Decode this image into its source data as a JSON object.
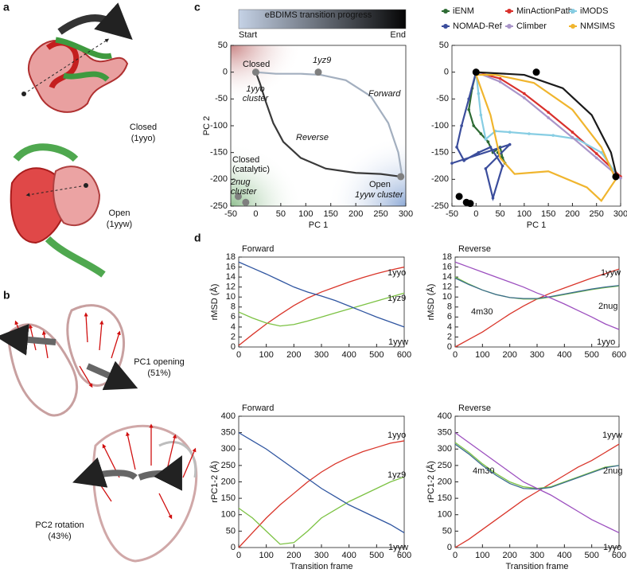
{
  "figure": {
    "panel_labels": [
      "a",
      "b",
      "c",
      "d"
    ],
    "panel_a": {
      "closed": [
        "Closed",
        "(1yyo)"
      ],
      "open": [
        "Open",
        "(1yyw)"
      ]
    },
    "panel_b": {
      "pc1": [
        "PC1 opening",
        "(51%)"
      ],
      "pc2": [
        "PC2 rotation",
        "(43%)"
      ]
    }
  },
  "chart_data": [
    {
      "type": "line",
      "xlabel": "PC 1",
      "ylabel": "PC 2",
      "xlim": [
        -50,
        300
      ],
      "ylim": [
        -250,
        50
      ],
      "xticks": [
        -50,
        0,
        50,
        100,
        150,
        200,
        250,
        300
      ],
      "yticks": [
        -250,
        -200,
        -150,
        -100,
        -50,
        0,
        50
      ],
      "colorbar": {
        "title": "eBDIMS transition progress",
        "start": "Start",
        "end": "End"
      },
      "series": [
        {
          "name": "Forward",
          "color": "#a3afbf",
          "x": [
            0,
            40,
            90,
            130,
            180,
            230,
            265,
            285,
            292
          ],
          "values": [
            0,
            -3,
            -3,
            -5,
            -15,
            -45,
            -95,
            -150,
            -190
          ]
        },
        {
          "name": "Reverse",
          "color": "#3a3a3a",
          "x": [
            0,
            8,
            20,
            35,
            55,
            90,
            140,
            200,
            250,
            290
          ],
          "values": [
            0,
            -20,
            -55,
            -95,
            -130,
            -160,
            -180,
            -188,
            -190,
            -195
          ]
        }
      ],
      "points": {
        "color": "#7f7f7f",
        "x": [
          0,
          125,
          290,
          -35,
          -20
        ],
        "y": [
          0,
          0,
          -195,
          -232,
          -243
        ]
      },
      "annotations": [
        [
          "Closed"
        ],
        [
          "1yz9"
        ],
        [
          "1yyo",
          "cluster"
        ],
        [
          "Closed",
          "(catalytic)"
        ],
        [
          "2nug",
          "cluster"
        ],
        [
          "Open"
        ],
        [
          "1yyw cluster"
        ]
      ]
    },
    {
      "type": "line",
      "xlabel": "PC 1",
      "xlim": [
        -50,
        300
      ],
      "ylim": [
        -250,
        50
      ],
      "xticks": [
        -50,
        0,
        50,
        100,
        150,
        200,
        250,
        300
      ],
      "yticks": [
        -250,
        -200,
        -150,
        -100,
        -50,
        0,
        50
      ],
      "legend": true,
      "series": [
        {
          "name": "iENM",
          "color": "#2e6b34",
          "markers": true,
          "x": [
            0,
            -8,
            -15,
            -5,
            10,
            25,
            35,
            50,
            55,
            60,
            45
          ],
          "values": [
            0,
            -30,
            -70,
            -100,
            -115,
            -130,
            -150,
            -140,
            -160,
            -170,
            -150
          ]
        },
        {
          "name": "MinActionPath",
          "color": "#d9302c",
          "markers": true,
          "x": [
            0,
            50,
            100,
            150,
            200,
            250,
            300
          ],
          "values": [
            0,
            -12,
            -40,
            -75,
            -112,
            -152,
            -195
          ]
        },
        {
          "name": "iMODS",
          "color": "#86cde3",
          "markers": true,
          "x": [
            0,
            5,
            10,
            20,
            40,
            70,
            110,
            160,
            210,
            260,
            295
          ],
          "values": [
            0,
            -40,
            -80,
            -125,
            -110,
            -112,
            -115,
            -118,
            -125,
            -150,
            -195
          ]
        },
        {
          "name": "NOMAD-Ref",
          "color": "#3b4d9c",
          "markers": true,
          "x": [
            0,
            -15,
            -30,
            -40,
            -25,
            5,
            30,
            55,
            35,
            20,
            70,
            -50
          ],
          "values": [
            0,
            -50,
            -100,
            -140,
            -165,
            -150,
            -140,
            -175,
            -235,
            -180,
            -135,
            -170
          ]
        },
        {
          "name": "Climber",
          "color": "#a995c9",
          "markers": true,
          "x": [
            0,
            50,
            100,
            150,
            200,
            250,
            300
          ],
          "values": [
            0,
            -18,
            -48,
            -85,
            -122,
            -160,
            -198
          ]
        },
        {
          "name": "NMSIMS",
          "color": "#f0b52e",
          "x": [
            0,
            30,
            50,
            80,
            150,
            230,
            260,
            290,
            260,
            200,
            120,
            40,
            0
          ],
          "values": [
            -5,
            -80,
            -160,
            -190,
            -185,
            -215,
            -240,
            -200,
            -140,
            -70,
            -20,
            -5,
            -5
          ]
        },
        {
          "color": "#1a1a1a",
          "x": [
            0,
            100,
            180,
            240,
            280,
            292
          ],
          "values": [
            0,
            -5,
            -30,
            -80,
            -150,
            -195
          ]
        }
      ],
      "points": {
        "color": "#000000",
        "x": [
          0,
          125,
          290,
          -35,
          -20,
          -12
        ],
        "y": [
          0,
          0,
          -195,
          -232,
          -243,
          -245
        ]
      }
    },
    {
      "type": "line",
      "title": "Forward",
      "ylabel": "rMSD (Å)",
      "xlim": [
        0,
        600
      ],
      "ylim": [
        0,
        18
      ],
      "xticks": [
        0,
        100,
        200,
        300,
        400,
        500,
        600
      ],
      "yticks": [
        0,
        2,
        4,
        6,
        8,
        10,
        12,
        14,
        16,
        18
      ],
      "x": [
        0,
        50,
        100,
        150,
        200,
        250,
        300,
        350,
        400,
        450,
        500,
        550,
        600
      ],
      "series": [
        {
          "name": "1yyo",
          "color": "#d9352a",
          "values": [
            0.3,
            2.5,
            4.6,
            6.5,
            8.3,
            9.8,
            11,
            12,
            13,
            13.9,
            14.7,
            15.4,
            16
          ]
        },
        {
          "name": "1yz9",
          "color": "#7cc243",
          "values": [
            7,
            5.8,
            4.8,
            4.2,
            4.5,
            5.2,
            6,
            6.8,
            7.6,
            8.4,
            9.2,
            10,
            10.8
          ]
        },
        {
          "name": "1yyw",
          "color": "#2f55a0",
          "values": [
            17,
            15.8,
            14.6,
            13.3,
            12,
            11,
            10.2,
            9.3,
            8.2,
            7.1,
            6,
            5,
            4
          ]
        }
      ]
    },
    {
      "type": "line",
      "title": "Reverse",
      "ylabel": "rMSD (Å)",
      "xlim": [
        0,
        600
      ],
      "ylim": [
        0,
        18
      ],
      "xticks": [
        0,
        100,
        200,
        300,
        400,
        500,
        600
      ],
      "yticks": [
        0,
        2,
        4,
        6,
        8,
        10,
        12,
        14,
        16,
        18
      ],
      "x": [
        0,
        50,
        100,
        150,
        200,
        250,
        300,
        350,
        400,
        450,
        500,
        550,
        600
      ],
      "series": [
        {
          "name": "1yyw",
          "color": "#d9352a",
          "values": [
            0,
            1.5,
            3,
            4.8,
            6.6,
            8.2,
            9.6,
            10.8,
            11.8,
            12.8,
            13.8,
            14.7,
            15.6
          ]
        },
        {
          "name": "4m30",
          "color": "#7cc243",
          "values": [
            14,
            12.6,
            11.4,
            10.5,
            9.9,
            9.6,
            9.6,
            10,
            10.5,
            11,
            11.5,
            11.9,
            12.2
          ]
        },
        {
          "name": "2nug",
          "color": "#3b6c8e",
          "values": [
            13.8,
            12.5,
            11.4,
            10.5,
            9.9,
            9.7,
            9.7,
            10.1,
            10.6,
            11.1,
            11.6,
            12,
            12.3
          ]
        },
        {
          "name": "1yyo",
          "color": "#9c4fbf",
          "values": [
            17,
            16,
            15,
            14,
            13,
            12,
            10.8,
            9.8,
            8.6,
            7.3,
            6,
            4.6,
            3.5
          ]
        }
      ]
    },
    {
      "type": "line",
      "title": "Forward",
      "ylabel": "rPC1-2 (Å)",
      "xlabel": "Transition frame",
      "xlim": [
        0,
        600
      ],
      "ylim": [
        0,
        400
      ],
      "xticks": [
        0,
        100,
        200,
        300,
        400,
        500,
        600
      ],
      "yticks": [
        0,
        50,
        100,
        150,
        200,
        250,
        300,
        350,
        400
      ],
      "x": [
        0,
        50,
        100,
        150,
        200,
        250,
        300,
        350,
        400,
        450,
        500,
        550,
        600
      ],
      "series": [
        {
          "name": "1yyo",
          "color": "#d9352a",
          "values": [
            0,
            45,
            90,
            130,
            165,
            200,
            230,
            255,
            275,
            292,
            305,
            318,
            325
          ]
        },
        {
          "name": "1yz9",
          "color": "#7cc243",
          "values": [
            120,
            90,
            50,
            10,
            15,
            50,
            90,
            115,
            140,
            160,
            180,
            200,
            215
          ]
        },
        {
          "name": "1yyw",
          "color": "#2f55a0",
          "values": [
            350,
            325,
            300,
            270,
            240,
            210,
            180,
            155,
            130,
            110,
            90,
            70,
            45
          ]
        }
      ]
    },
    {
      "type": "line",
      "title": "Reverse",
      "ylabel": "rPC1-2 (Å)",
      "xlabel": "Transition frame",
      "xlim": [
        0,
        600
      ],
      "ylim": [
        0,
        400
      ],
      "xticks": [
        0,
        100,
        200,
        300,
        400,
        500,
        600
      ],
      "yticks": [
        0,
        50,
        100,
        150,
        200,
        250,
        300,
        350,
        400
      ],
      "x": [
        0,
        50,
        100,
        150,
        200,
        250,
        300,
        350,
        400,
        450,
        500,
        550,
        600
      ],
      "series": [
        {
          "name": "1yyw",
          "color": "#d9352a",
          "values": [
            0,
            25,
            55,
            85,
            115,
            145,
            170,
            195,
            220,
            245,
            265,
            290,
            315
          ]
        },
        {
          "name": "4m30",
          "color": "#7cc243",
          "values": [
            320,
            290,
            255,
            225,
            200,
            185,
            180,
            185,
            200,
            215,
            230,
            245,
            250
          ]
        },
        {
          "name": "2nug",
          "color": "#3b6c8e",
          "values": [
            315,
            285,
            250,
            220,
            195,
            180,
            178,
            183,
            198,
            213,
            228,
            243,
            250
          ]
        },
        {
          "name": "1yyo",
          "color": "#9c4fbf",
          "values": [
            350,
            320,
            290,
            260,
            230,
            200,
            180,
            160,
            135,
            110,
            85,
            65,
            45
          ]
        }
      ]
    }
  ]
}
